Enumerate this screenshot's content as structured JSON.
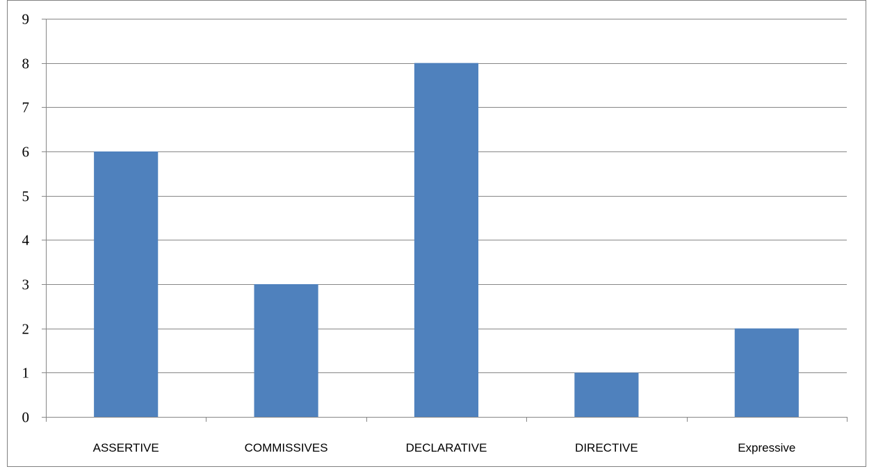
{
  "chart_data": {
    "type": "bar",
    "categories": [
      "ASSERTIVE",
      "COMMISSIVES",
      "DECLARATIVE",
      "DIRECTIVE",
      "Expressive"
    ],
    "values": [
      6,
      3,
      8,
      1,
      2
    ],
    "ylim": [
      0,
      9
    ],
    "yticks": [
      0,
      1,
      2,
      3,
      4,
      5,
      6,
      7,
      8,
      9
    ],
    "grid": true,
    "bar_color": "#4F81BD",
    "gridline_color": "#868686"
  }
}
